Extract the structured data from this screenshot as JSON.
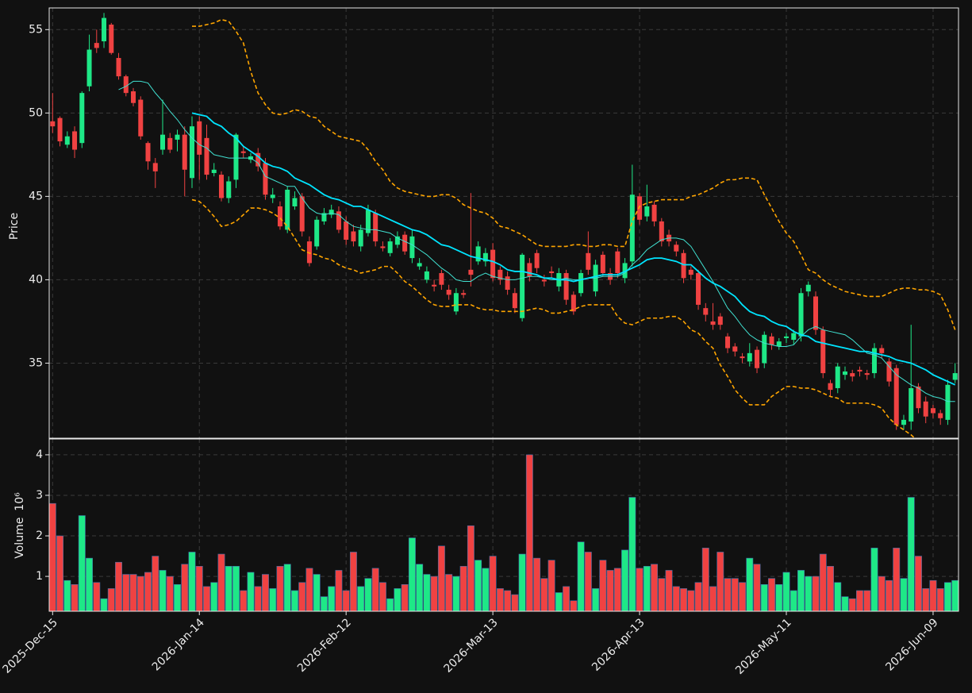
{
  "chart_data": {
    "type": "candlestick",
    "ylabel": "Price",
    "volume_ylabel": "Volume",
    "volume_offset_label": "10⁶",
    "categories": [
      "2025-Dec-15",
      null,
      null,
      null,
      null,
      null,
      null,
      null,
      null,
      null,
      null,
      null,
      null,
      null,
      null,
      null,
      null,
      null,
      null,
      null,
      "2026-Jan-14",
      null,
      null,
      null,
      null,
      null,
      null,
      null,
      null,
      null,
      null,
      null,
      null,
      null,
      null,
      null,
      null,
      null,
      null,
      null,
      "2026-Feb-12",
      null,
      null,
      null,
      null,
      null,
      null,
      null,
      null,
      null,
      null,
      null,
      null,
      null,
      null,
      null,
      null,
      null,
      null,
      null,
      "2026-Mar-13",
      null,
      null,
      null,
      null,
      null,
      null,
      null,
      null,
      null,
      null,
      null,
      null,
      null,
      null,
      null,
      null,
      null,
      null,
      null,
      "2026-Apr-13",
      null,
      null,
      null,
      null,
      null,
      null,
      null,
      null,
      null,
      null,
      null,
      null,
      null,
      null,
      null,
      null,
      null,
      null,
      null,
      "2026-May-11",
      null,
      null,
      null,
      null,
      null,
      null,
      null,
      null,
      null,
      null,
      null,
      null,
      null,
      null,
      null,
      null,
      null,
      null,
      null,
      "2026-Jun-09",
      null,
      null,
      null
    ],
    "open": [
      49.5,
      49.7,
      48.1,
      48.9,
      48.2,
      51.6,
      54.2,
      54.3,
      55.3,
      53.3,
      52.2,
      51.3,
      50.8,
      48.2,
      47.0,
      47.8,
      48.5,
      48.4,
      48.7,
      46.1,
      49.5,
      48.5,
      46.4,
      46.3,
      44.9,
      46.0,
      47.7,
      47.2,
      47.6,
      47.0,
      44.9,
      44.4,
      43.0,
      44.4,
      45.0,
      42.3,
      42.0,
      43.5,
      43.9,
      44.1,
      43.5,
      42.9,
      42.0,
      42.8,
      44.0,
      42.0,
      41.6,
      42.1,
      42.7,
      41.3,
      40.8,
      40.0,
      39.7,
      40.4,
      39.4,
      38.1,
      39.2,
      40.6,
      41.1,
      41.1,
      41.8,
      40.6,
      40.2,
      39.2,
      37.7,
      41.0,
      41.6,
      40.0,
      40.5,
      39.6,
      40.4,
      39.1,
      39.2,
      41.6,
      39.3,
      41.5,
      40.4,
      41.7,
      40.1,
      41.1,
      45.0,
      43.8,
      44.5,
      43.5,
      42.7,
      42.1,
      41.6,
      40.6,
      40.4,
      38.3,
      37.5,
      37.8,
      36.6,
      36.0,
      35.4,
      35.1,
      35.8,
      35.0,
      36.6,
      36.0,
      36.5,
      36.4,
      36.6,
      39.3,
      39.0,
      37.0,
      33.8,
      33.5,
      34.3,
      34.4,
      34.6,
      34.4,
      34.4,
      35.9,
      35.1,
      34.7,
      31.3,
      31.5,
      33.6,
      32.7,
      32.3,
      32.0,
      31.6,
      34.0
    ],
    "high": [
      51.2,
      49.8,
      48.9,
      49.2,
      51.3,
      54.7,
      55.0,
      56.0,
      55.4,
      53.6,
      52.3,
      51.5,
      51.0,
      48.3,
      47.3,
      50.8,
      48.8,
      49.0,
      49.2,
      49.8,
      49.8,
      49.3,
      47.0,
      46.5,
      46.2,
      48.8,
      48.0,
      47.6,
      47.9,
      47.3,
      45.5,
      44.7,
      45.6,
      45.3,
      45.2,
      42.6,
      43.8,
      44.3,
      44.5,
      44.4,
      43.8,
      43.3,
      43.3,
      44.5,
      44.2,
      42.3,
      42.5,
      42.9,
      42.9,
      43.0,
      41.3,
      40.8,
      40.0,
      40.6,
      39.7,
      39.5,
      39.4,
      45.2,
      42.3,
      41.9,
      42.2,
      40.8,
      40.5,
      39.5,
      41.6,
      41.3,
      41.8,
      40.3,
      40.8,
      40.7,
      40.6,
      39.3,
      40.6,
      42.9,
      41.2,
      41.7,
      40.7,
      41.9,
      41.3,
      46.9,
      45.2,
      45.7,
      44.7,
      43.7,
      43.0,
      42.3,
      41.8,
      40.8,
      40.6,
      38.6,
      38.6,
      38.0,
      36.8,
      36.2,
      35.6,
      36.2,
      36.0,
      36.9,
      36.8,
      36.5,
      36.8,
      37.0,
      39.5,
      39.9,
      39.3,
      37.2,
      34.0,
      35.0,
      34.8,
      34.6,
      34.8,
      34.6,
      36.2,
      36.1,
      35.3,
      34.9,
      31.9,
      37.3,
      33.8,
      33.0,
      32.5,
      32.2,
      34.0,
      35.0
    ],
    "low": [
      48.8,
      48.0,
      47.9,
      47.3,
      47.9,
      51.3,
      53.6,
      53.9,
      53.5,
      52.0,
      51.0,
      50.4,
      48.4,
      46.6,
      45.5,
      47.5,
      47.6,
      47.7,
      45.0,
      45.5,
      46.0,
      46.0,
      46.2,
      44.7,
      44.6,
      45.5,
      47.3,
      47.0,
      46.5,
      44.8,
      44.6,
      43.0,
      42.8,
      44.2,
      42.6,
      40.8,
      41.8,
      43.3,
      43.7,
      42.8,
      42.1,
      42.0,
      41.7,
      42.6,
      42.0,
      41.7,
      41.4,
      41.9,
      41.5,
      41.0,
      40.6,
      39.8,
      39.3,
      39.4,
      38.8,
      37.9,
      38.9,
      39.6,
      40.9,
      40.8,
      39.9,
      39.7,
      39.1,
      38.0,
      37.5,
      39.9,
      40.4,
      39.6,
      40.1,
      39.3,
      38.5,
      37.9,
      39.0,
      40.3,
      39.0,
      40.2,
      39.7,
      40.1,
      39.8,
      40.8,
      43.3,
      43.5,
      43.2,
      42.0,
      42.0,
      41.4,
      39.8,
      40.0,
      38.2,
      37.5,
      37.0,
      37.0,
      35.6,
      35.4,
      35.0,
      34.8,
      34.4,
      34.7,
      35.8,
      35.8,
      36.2,
      36.1,
      36.3,
      39.0,
      36.7,
      34.1,
      33.0,
      33.2,
      34.0,
      33.9,
      34.2,
      34.0,
      34.1,
      35.3,
      33.6,
      31.0,
      31.0,
      31.0,
      32.0,
      31.4,
      31.7,
      31.3,
      31.3,
      33.8
    ],
    "close": [
      49.2,
      48.3,
      48.6,
      47.8,
      51.2,
      53.8,
      53.9,
      55.7,
      53.6,
      52.2,
      51.2,
      50.6,
      48.6,
      47.1,
      46.5,
      48.7,
      47.8,
      48.7,
      46.6,
      49.2,
      47.5,
      46.3,
      46.6,
      44.9,
      45.9,
      48.7,
      47.6,
      47.4,
      46.8,
      45.1,
      45.1,
      43.2,
      45.4,
      44.9,
      42.9,
      41.0,
      43.6,
      44.0,
      44.2,
      43.0,
      42.4,
      42.3,
      43.0,
      44.2,
      42.3,
      41.9,
      42.3,
      42.6,
      41.7,
      42.6,
      41.0,
      40.5,
      39.6,
      39.7,
      39.1,
      39.2,
      39.1,
      40.3,
      42.0,
      41.6,
      40.1,
      40.0,
      39.4,
      38.3,
      41.5,
      40.2,
      40.7,
      39.9,
      40.4,
      40.4,
      38.8,
      38.1,
      40.4,
      40.6,
      40.9,
      40.4,
      40.0,
      40.4,
      41.0,
      45.1,
      43.6,
      44.4,
      43.5,
      42.3,
      42.3,
      41.7,
      40.1,
      40.3,
      38.5,
      37.9,
      37.3,
      37.3,
      35.9,
      35.7,
      35.3,
      35.6,
      34.7,
      36.7,
      36.1,
      36.3,
      36.6,
      36.8,
      39.2,
      39.7,
      37.0,
      34.4,
      33.4,
      34.8,
      34.5,
      34.2,
      34.5,
      34.3,
      35.9,
      35.6,
      33.9,
      31.3,
      31.6,
      33.5,
      32.3,
      31.8,
      32.0,
      31.7,
      33.7,
      34.4
    ],
    "volume": [
      2.8,
      2.0,
      0.9,
      0.8,
      2.5,
      1.45,
      0.85,
      0.45,
      0.7,
      1.35,
      1.05,
      1.05,
      1.0,
      1.1,
      1.5,
      1.15,
      1.0,
      0.8,
      1.3,
      1.6,
      1.25,
      0.75,
      0.85,
      1.55,
      1.25,
      1.25,
      0.65,
      1.1,
      0.75,
      1.05,
      0.7,
      1.25,
      1.3,
      0.65,
      0.85,
      1.2,
      1.05,
      0.5,
      0.75,
      1.15,
      0.65,
      1.6,
      0.75,
      0.95,
      1.2,
      0.85,
      0.45,
      0.7,
      0.8,
      1.95,
      1.3,
      1.05,
      1.0,
      1.75,
      1.05,
      1.0,
      1.25,
      2.25,
      1.4,
      1.2,
      1.5,
      0.7,
      0.65,
      0.55,
      1.55,
      4.0,
      1.45,
      0.95,
      1.4,
      0.6,
      0.75,
      0.4,
      1.85,
      1.6,
      0.7,
      1.4,
      1.15,
      1.2,
      1.65,
      2.95,
      1.2,
      1.25,
      1.3,
      0.95,
      1.15,
      0.75,
      0.7,
      0.65,
      0.85,
      1.7,
      0.75,
      1.6,
      0.95,
      0.95,
      0.85,
      1.45,
      1.3,
      0.8,
      0.95,
      0.8,
      1.1,
      0.65,
      1.15,
      1.0,
      1.0,
      1.55,
      1.25,
      0.85,
      0.5,
      0.45,
      0.65,
      0.65,
      1.7,
      1.0,
      0.9,
      1.7,
      0.95,
      2.95,
      1.5,
      0.7,
      0.9,
      0.7,
      0.85,
      0.9
    ],
    "lines": [
      {
        "color": "#40e0d0",
        "values": [
          null,
          null,
          null,
          null,
          null,
          null,
          null,
          null,
          null,
          51.4,
          51.6,
          51.9,
          51.9,
          51.8,
          51.2,
          50.7,
          50.1,
          49.6,
          49.0,
          48.5,
          48.1,
          47.9,
          47.5,
          47.4,
          47.3,
          47.3,
          47.3,
          47.3,
          47.0,
          46.2,
          46.0,
          45.8,
          45.6,
          45.6,
          44.9,
          44.3,
          44.0,
          43.9,
          44.0,
          43.9,
          43.5,
          43.2,
          43.1,
          43.0,
          43.0,
          42.9,
          42.8,
          42.5,
          42.3,
          42.1,
          41.8,
          41.5,
          41.1,
          40.7,
          40.4,
          40.0,
          39.9,
          39.9,
          40.2,
          40.4,
          40.2,
          40.1,
          40.0,
          40.0,
          40.1,
          40.2,
          40.2,
          40.1,
          40.0,
          40.0,
          40.1,
          40.0,
          40.0,
          40.1,
          40.1,
          40.2,
          40.2,
          40.2,
          40.4,
          40.9,
          41.3,
          41.8,
          42.1,
          42.4,
          42.5,
          42.5,
          42.4,
          42.0,
          41.3,
          40.6,
          39.9,
          39.1,
          38.3,
          37.8,
          37.2,
          36.7,
          36.4,
          36.2,
          36.1,
          36.0,
          36.0,
          36.1,
          36.6,
          37.0,
          37.2,
          37.0,
          36.9,
          36.8,
          36.7,
          36.4,
          36.0,
          35.6,
          35.5,
          35.3,
          34.8,
          34.3,
          34.0,
          33.7,
          33.5,
          33.2,
          33.0,
          32.9,
          32.7,
          32.7
        ]
      },
      {
        "color": "#00e5ff",
        "values": [
          null,
          null,
          null,
          null,
          null,
          null,
          null,
          null,
          null,
          null,
          null,
          null,
          null,
          null,
          null,
          null,
          null,
          null,
          null,
          50.0,
          49.9,
          49.8,
          49.4,
          49.2,
          48.8,
          48.5,
          48.0,
          47.7,
          47.4,
          47.0,
          46.8,
          46.7,
          46.5,
          46.1,
          45.9,
          45.7,
          45.4,
          45.1,
          44.9,
          44.8,
          44.6,
          44.4,
          44.4,
          44.2,
          44.0,
          43.8,
          43.6,
          43.4,
          43.2,
          43.0,
          42.9,
          42.7,
          42.4,
          42.1,
          42.0,
          41.8,
          41.6,
          41.4,
          41.3,
          41.2,
          41.1,
          40.9,
          40.6,
          40.5,
          40.5,
          40.4,
          40.3,
          40.1,
          40.1,
          40.0,
          40.0,
          39.9,
          40.0,
          40.1,
          40.2,
          40.3,
          40.3,
          40.3,
          40.5,
          40.7,
          40.9,
          41.2,
          41.3,
          41.3,
          41.2,
          41.1,
          40.9,
          40.9,
          40.5,
          40.1,
          39.8,
          39.6,
          39.3,
          39.0,
          38.5,
          38.1,
          37.9,
          37.8,
          37.5,
          37.3,
          37.2,
          36.9,
          36.7,
          36.6,
          36.3,
          36.2,
          36.1,
          36.0,
          35.9,
          35.8,
          35.7,
          35.7,
          35.6,
          35.5,
          35.4,
          35.2,
          35.1,
          35.0,
          34.8,
          34.6,
          34.3,
          34.1,
          33.9,
          33.7
        ]
      },
      {
        "color": "#ffa500",
        "dashed": true,
        "values": [
          null,
          null,
          null,
          null,
          null,
          null,
          null,
          null,
          null,
          null,
          null,
          null,
          null,
          null,
          null,
          null,
          null,
          null,
          null,
          55.2,
          55.2,
          55.3,
          55.4,
          55.6,
          55.5,
          54.9,
          54.2,
          52.5,
          51.2,
          50.5,
          50.0,
          49.9,
          50.0,
          50.2,
          50.1,
          49.8,
          49.7,
          49.2,
          48.9,
          48.6,
          48.5,
          48.4,
          48.3,
          47.8,
          47.1,
          46.6,
          45.9,
          45.5,
          45.3,
          45.2,
          45.1,
          45.0,
          45.0,
          45.1,
          45.1,
          44.9,
          44.5,
          44.3,
          44.1,
          44.0,
          43.7,
          43.2,
          43.1,
          42.9,
          42.7,
          42.4,
          42.1,
          42.0,
          42.0,
          42.0,
          42.0,
          42.1,
          42.1,
          42.0,
          42.0,
          42.1,
          42.1,
          42.0,
          42.0,
          43.5,
          44.4,
          44.6,
          44.7,
          44.8,
          44.8,
          44.8,
          44.8,
          45.0,
          45.1,
          45.3,
          45.5,
          45.8,
          46.0,
          46.0,
          46.1,
          46.1,
          46.0,
          45.1,
          44.3,
          43.5,
          42.8,
          42.3,
          41.5,
          40.6,
          40.4,
          40.0,
          39.7,
          39.5,
          39.3,
          39.2,
          39.1,
          39.0,
          39.0,
          39.0,
          39.2,
          39.4,
          39.5,
          39.5,
          39.4,
          39.4,
          39.3,
          39.1,
          38.2,
          37.0
        ]
      },
      {
        "color": "#ffa500",
        "dashed": true,
        "values": [
          null,
          null,
          null,
          null,
          null,
          null,
          null,
          null,
          null,
          null,
          null,
          null,
          null,
          null,
          null,
          null,
          null,
          null,
          null,
          44.8,
          44.7,
          44.3,
          43.8,
          43.2,
          43.3,
          43.5,
          43.9,
          44.3,
          44.3,
          44.2,
          44.0,
          43.7,
          43.2,
          42.5,
          41.8,
          41.6,
          41.5,
          41.3,
          41.2,
          40.9,
          40.7,
          40.6,
          40.4,
          40.5,
          40.6,
          40.8,
          40.8,
          40.4,
          39.9,
          39.6,
          39.2,
          38.8,
          38.5,
          38.4,
          38.4,
          38.5,
          38.5,
          38.5,
          38.3,
          38.2,
          38.2,
          38.1,
          38.1,
          38.1,
          38.1,
          38.2,
          38.3,
          38.2,
          38.0,
          38.0,
          38.1,
          38.2,
          38.4,
          38.5,
          38.5,
          38.5,
          38.5,
          37.8,
          37.4,
          37.3,
          37.5,
          37.7,
          37.7,
          37.7,
          37.8,
          37.8,
          37.5,
          37.0,
          36.8,
          36.3,
          35.9,
          34.9,
          34.2,
          33.4,
          32.9,
          32.5,
          32.5,
          32.5,
          33.0,
          33.3,
          33.6,
          33.6,
          33.5,
          33.5,
          33.4,
          33.2,
          33.0,
          32.9,
          32.6,
          32.6,
          32.6,
          32.6,
          32.5,
          32.3,
          31.7,
          31.3,
          31.0,
          30.7,
          30.3,
          30.0,
          29.8,
          29.6,
          29.4,
          29.1
        ]
      }
    ],
    "up_color": "#1ee887",
    "down_color": "#f04242",
    "ylim": [
      30.5,
      56.3
    ],
    "yticks": [
      35,
      40,
      45,
      50,
      55
    ],
    "volume_ylim": [
      0.14,
      4.39
    ],
    "volume_yticks": [
      1,
      2,
      3,
      4
    ],
    "grid": true
  }
}
